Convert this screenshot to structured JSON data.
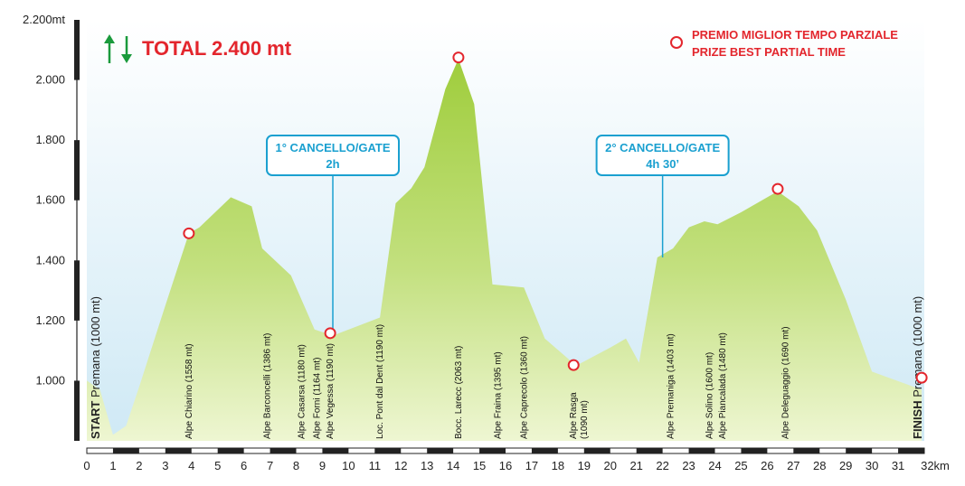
{
  "chart_data": {
    "type": "area",
    "title": "TOTAL 2.400 mt",
    "x_unit_label": "32km",
    "y_top_label": "2.200mt",
    "xlim": [
      0,
      32
    ],
    "ylim": [
      800,
      2200
    ],
    "y_ticks": [
      "1.000",
      "1.200",
      "1.400",
      "1.600",
      "1.800",
      "2.000"
    ],
    "x_ticks": [
      "0",
      "1",
      "2",
      "3",
      "4",
      "5",
      "6",
      "7",
      "8",
      "9",
      "10",
      "11",
      "12",
      "13",
      "14",
      "15",
      "16",
      "17",
      "18",
      "19",
      "20",
      "21",
      "22",
      "23",
      "24",
      "25",
      "26",
      "27",
      "28",
      "29",
      "30",
      "31"
    ],
    "profile": [
      [
        0,
        1000
      ],
      [
        0.5,
        970
      ],
      [
        1.0,
        820
      ],
      [
        1.5,
        850
      ],
      [
        2.0,
        980
      ],
      [
        3.0,
        1250
      ],
      [
        3.9,
        1490
      ],
      [
        4.3,
        1510
      ],
      [
        5.5,
        1610
      ],
      [
        6.3,
        1580
      ],
      [
        6.7,
        1440
      ],
      [
        7.8,
        1350
      ],
      [
        8.7,
        1170
      ],
      [
        9.4,
        1150
      ],
      [
        10.3,
        1180
      ],
      [
        11.2,
        1210
      ],
      [
        11.8,
        1590
      ],
      [
        12.4,
        1640
      ],
      [
        12.9,
        1710
      ],
      [
        13.7,
        1970
      ],
      [
        14.2,
        2070
      ],
      [
        14.8,
        1920
      ],
      [
        15.5,
        1320
      ],
      [
        16.7,
        1310
      ],
      [
        17.5,
        1140
      ],
      [
        18.7,
        1050
      ],
      [
        20.0,
        1110
      ],
      [
        20.6,
        1140
      ],
      [
        21.1,
        1060
      ],
      [
        21.8,
        1410
      ],
      [
        22.4,
        1440
      ],
      [
        23.0,
        1510
      ],
      [
        23.6,
        1530
      ],
      [
        24.1,
        1520
      ],
      [
        25.0,
        1560
      ],
      [
        26.4,
        1630
      ],
      [
        27.2,
        1580
      ],
      [
        27.9,
        1500
      ],
      [
        29.0,
        1270
      ],
      [
        30.0,
        1030
      ],
      [
        31.9,
        970
      ]
    ],
    "locations": [
      {
        "name": "Alpe Chiarino (1558 mt)",
        "x": 3.9
      },
      {
        "name": "Alpe Barconcelli (1386 mt)",
        "x": 6.9
      },
      {
        "name": "Alpe Casarsa (1180 mt)",
        "x": 8.2
      },
      {
        "name": "Alpe Forni (1164 mt)",
        "x": 8.8
      },
      {
        "name": "Alpe Vegessa (1190 mt)",
        "x": 9.3
      },
      {
        "name": "Loc. Pont dal Dent (1190 mt)",
        "x": 11.2
      },
      {
        "name": "Bocc. Larecc (2063 mt)",
        "x": 14.2
      },
      {
        "name": "Alpe Fraina (1395 mt)",
        "x": 15.7
      },
      {
        "name": "Alpe Caprecolo (1360 mt)",
        "x": 16.7
      },
      {
        "name": "Alpe Rasga",
        "name2": "(1090 mt)",
        "x": 18.6
      },
      {
        "name": "Alpe Premaniga (1403 mt)",
        "x": 22.3
      },
      {
        "name": "Alpe Solino (1600 mt)",
        "x": 23.8
      },
      {
        "name": "Alpe Piancalada (1480 mt)",
        "x": 24.3
      },
      {
        "name": "Alpe Deleguaggio (1690 mt)",
        "x": 26.7
      }
    ],
    "prize_points": [
      {
        "x": 3.9,
        "y": 1490
      },
      {
        "x": 9.3,
        "y": 1158
      },
      {
        "x": 14.2,
        "y": 2075
      },
      {
        "x": 18.6,
        "y": 1052
      },
      {
        "x": 26.4,
        "y": 1638
      },
      {
        "x": 31.9,
        "y": 1010
      }
    ],
    "gates": [
      {
        "line1": "1° CANCELLO/GATE",
        "line2": "2h",
        "x": 9.4,
        "y": 1160
      },
      {
        "line1": "2° CANCELLO/GATE",
        "line2": "4h 30’",
        "x": 22.0,
        "y": 1410
      }
    ],
    "start_label": {
      "bold": "START",
      "rest": " Premana (1000 mt)"
    },
    "finish_label": {
      "bold": "FINISH",
      "rest": " Premana (1000 mt)"
    },
    "legend": {
      "line1": "PREMIO MIGLIOR TEMPO PARZIALE",
      "line2": "PRIZE BEST PARTIAL TIME"
    },
    "colors": {
      "sky_top": "#ffffff",
      "sky_bottom": "#cfe9f5",
      "fill_top": "#a2cf42",
      "fill_bottom": "#e8f3c3",
      "accent_red": "#e3262d",
      "gate_blue": "#1aa0d0",
      "arrow_green": "#1a9a3c"
    }
  }
}
